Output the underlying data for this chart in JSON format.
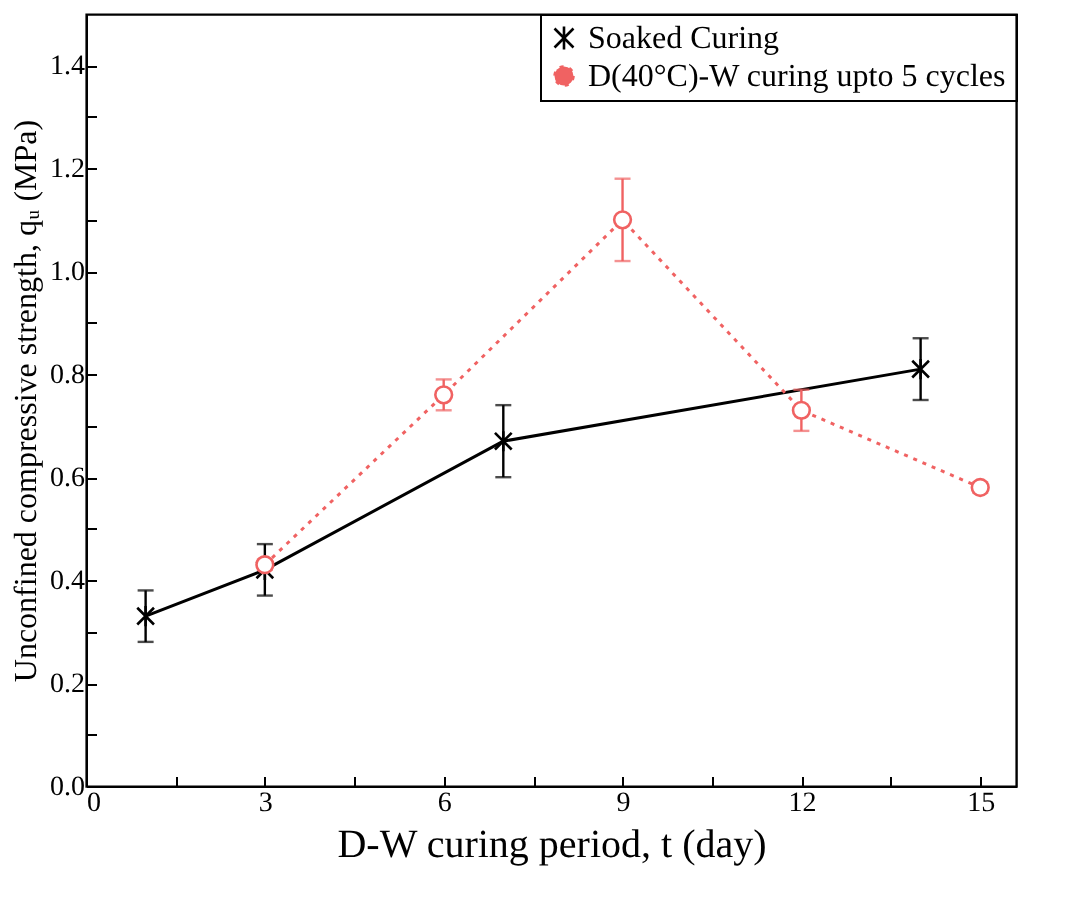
{
  "chart_data": {
    "type": "line",
    "xlabel": "D-W curing period, t (day)",
    "ylabel": "Unconfined compressive strength, qᵤ (MPa)",
    "xlim": [
      0,
      15.6
    ],
    "ylim": [
      0,
      1.5
    ],
    "xticks": [
      0,
      {
        "value": 1.5,
        "label": null
      },
      3,
      {
        "value": 4.5,
        "label": null
      },
      6,
      {
        "value": 7.5,
        "label": null
      },
      9,
      {
        "value": 10.5,
        "label": null
      },
      12,
      {
        "value": 13.5,
        "label": null
      },
      15
    ],
    "yticks": [
      {
        "value": 0,
        "label": "0.0"
      },
      {
        "value": 0.1,
        "label": null
      },
      0.2,
      {
        "value": 0.3,
        "label": null
      },
      0.4,
      {
        "value": 0.5,
        "label": null
      },
      0.6,
      {
        "value": 0.7,
        "label": null
      },
      0.8,
      {
        "value": 0.9,
        "label": null
      },
      {
        "value": 1,
        "label": "1.0"
      },
      {
        "value": 1.1,
        "label": null
      },
      1.2,
      {
        "value": 1.3,
        "label": null
      },
      1.4
    ],
    "legend": "top right",
    "grid": false,
    "series": [
      {
        "name": "Soaked Curing",
        "color": "#000000",
        "marker": "cross",
        "line_style": "solid",
        "x": [
          1,
          3,
          7,
          14
        ],
        "values": [
          0.33,
          0.42,
          0.67,
          0.81
        ],
        "errors": [
          0.05,
          0.05,
          0.07,
          0.06
        ]
      },
      {
        "name": "D(40°C)-W curing upto 5 cycles",
        "color": "#f06262",
        "marker": "circle",
        "line_style": "dotted",
        "x": [
          3,
          6,
          9,
          12,
          15
        ],
        "values": [
          0.43,
          0.76,
          1.1,
          0.73,
          0.58
        ],
        "errors": [
          0.01,
          0.03,
          0.08,
          0.04,
          0.01
        ]
      }
    ]
  }
}
